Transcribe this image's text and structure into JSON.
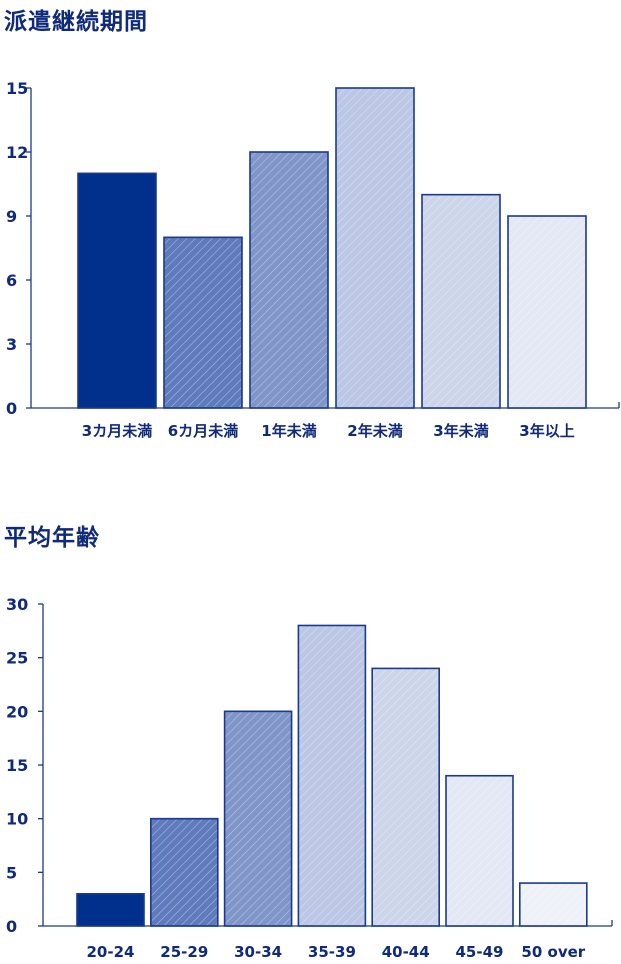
{
  "charts": [
    {
      "type": "bar",
      "title": "派遣継続期間",
      "categories": [
        "3カ月未満",
        "6カ月未満",
        "1年未満",
        "2年未満",
        "3年未満",
        "3年以上"
      ],
      "values": [
        11,
        8,
        12,
        15,
        10,
        9
      ],
      "ylim": [
        0,
        15
      ],
      "yticks": [
        0,
        3,
        6,
        9,
        12,
        15
      ],
      "xlabel": "",
      "ylabel": "",
      "grid": false,
      "legend": "none",
      "colors": [
        "#002f8c",
        "#5f7bbd",
        "#8096c9",
        "#bbc7e5",
        "#cdd5ea",
        "#e3e8f4"
      ]
    },
    {
      "type": "bar",
      "title": "平均年齢",
      "categories": [
        "20-24",
        "25-29",
        "30-34",
        "35-39",
        "40-44",
        "45-49",
        "50 over"
      ],
      "values": [
        3,
        10,
        20,
        28,
        24,
        14,
        4
      ],
      "ylim": [
        0,
        30
      ],
      "yticks": [
        0,
        5,
        10,
        15,
        20,
        25,
        30
      ],
      "xlabel": "",
      "ylabel": "",
      "grid": false,
      "legend": "none",
      "colors": [
        "#002f8c",
        "#5f7bbd",
        "#8096c9",
        "#bbc7e5",
        "#cdd5ea",
        "#e3e8f4",
        "#eef1f8"
      ]
    }
  ],
  "colors": {
    "axis": "#1a3a8f",
    "text": "#0f2a7a",
    "hatch": "#ffffff"
  }
}
